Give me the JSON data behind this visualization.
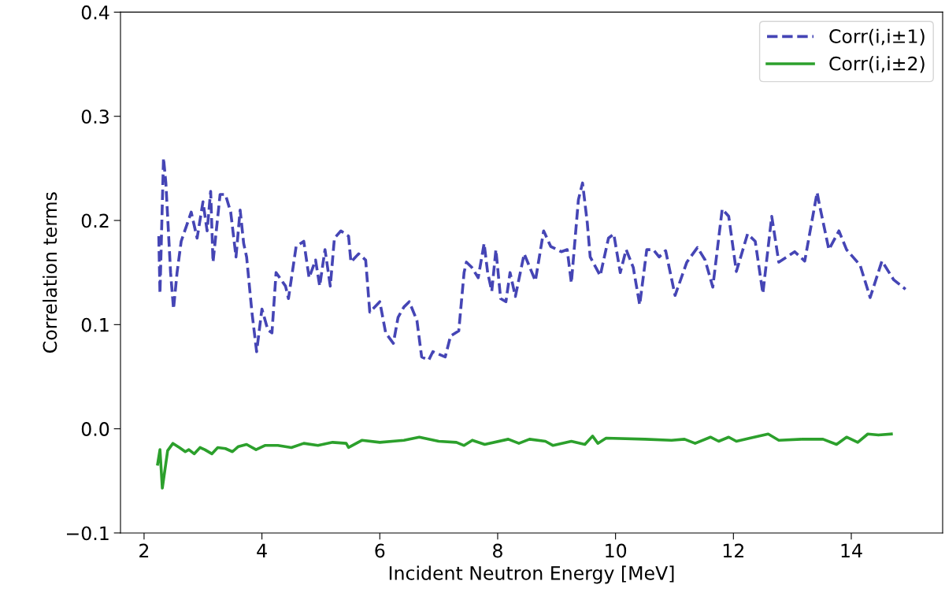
{
  "chart_data": {
    "type": "line",
    "xlabel": "Incident Neutron Energy [MeV]",
    "ylabel": "Correlation terms",
    "xlim": [
      1.6,
      15.55
    ],
    "ylim": [
      -0.1,
      0.4
    ],
    "xticks": [
      2,
      4,
      6,
      8,
      10,
      12,
      14
    ],
    "yticks": [
      {
        "value": -0.1,
        "label": "−0.1"
      },
      {
        "value": 0,
        "label": "0.0"
      },
      {
        "value": 0.1,
        "label": "0.1"
      },
      {
        "value": 0.2,
        "label": "0.2"
      },
      {
        "value": 0.3,
        "label": "0.3"
      },
      {
        "value": 0.4,
        "label": "0.4"
      }
    ],
    "grid": false,
    "legend": "top right",
    "series": [
      {
        "name": "Corr(i,i±1)",
        "color": "#4545b5",
        "line_style": "dashed",
        "x": [
          2.25,
          2.27,
          2.33,
          2.37,
          2.45,
          2.5,
          2.56,
          2.63,
          2.8,
          2.9,
          3.0,
          3.07,
          3.13,
          3.17,
          3.29,
          3.38,
          3.47,
          3.56,
          3.63,
          3.69,
          3.74,
          3.83,
          3.91,
          4.0,
          4.1,
          4.17,
          4.24,
          4.4,
          4.45,
          4.58,
          4.71,
          4.8,
          4.91,
          4.98,
          5.07,
          5.16,
          5.23,
          5.34,
          5.47,
          5.51,
          5.64,
          5.76,
          5.83,
          6.0,
          6.1,
          6.23,
          6.31,
          6.41,
          6.5,
          6.63,
          6.71,
          6.83,
          6.9,
          7.11,
          7.2,
          7.34,
          7.43,
          7.47,
          7.56,
          7.67,
          7.77,
          7.83,
          7.9,
          7.97,
          8.05,
          8.14,
          8.21,
          8.3,
          8.45,
          8.64,
          8.78,
          8.9,
          9.08,
          9.18,
          9.25,
          9.37,
          9.44,
          9.52,
          9.57,
          9.74,
          9.88,
          9.97,
          10.08,
          10.18,
          10.3,
          10.41,
          10.53,
          10.64,
          10.74,
          10.85,
          11.01,
          11.21,
          11.39,
          11.52,
          11.65,
          11.81,
          11.92,
          12.05,
          12.24,
          12.37,
          12.5,
          12.65,
          12.77,
          13.04,
          13.21,
          13.42,
          13.46,
          13.62,
          13.79,
          13.92,
          14.15,
          14.32,
          14.52,
          14.72,
          14.92
        ],
        "values": [
          0.185,
          0.13,
          0.26,
          0.236,
          0.15,
          0.115,
          0.15,
          0.18,
          0.208,
          0.183,
          0.218,
          0.19,
          0.228,
          0.16,
          0.225,
          0.225,
          0.208,
          0.165,
          0.21,
          0.178,
          0.165,
          0.112,
          0.074,
          0.115,
          0.095,
          0.092,
          0.15,
          0.137,
          0.125,
          0.175,
          0.18,
          0.145,
          0.162,
          0.137,
          0.172,
          0.137,
          0.183,
          0.19,
          0.185,
          0.16,
          0.168,
          0.162,
          0.112,
          0.122,
          0.092,
          0.082,
          0.107,
          0.117,
          0.122,
          0.104,
          0.069,
          0.066,
          0.074,
          0.069,
          0.089,
          0.094,
          0.15,
          0.16,
          0.155,
          0.145,
          0.178,
          0.15,
          0.132,
          0.172,
          0.125,
          0.122,
          0.15,
          0.127,
          0.168,
          0.142,
          0.19,
          0.175,
          0.17,
          0.172,
          0.14,
          0.22,
          0.236,
          0.198,
          0.165,
          0.147,
          0.183,
          0.187,
          0.15,
          0.172,
          0.155,
          0.119,
          0.172,
          0.172,
          0.165,
          0.171,
          0.128,
          0.16,
          0.174,
          0.162,
          0.136,
          0.211,
          0.204,
          0.151,
          0.187,
          0.18,
          0.13,
          0.204,
          0.16,
          0.17,
          0.161,
          0.227,
          0.215,
          0.172,
          0.19,
          0.172,
          0.157,
          0.126,
          0.161,
          0.143,
          0.134
        ]
      },
      {
        "name": "Corr(i,i±2)",
        "color": "#2ca02c",
        "line_style": "solid",
        "x": [
          2.23,
          2.27,
          2.31,
          2.4,
          2.49,
          2.6,
          2.7,
          2.76,
          2.85,
          2.95,
          3.03,
          3.15,
          3.25,
          3.38,
          3.5,
          3.6,
          3.74,
          3.9,
          4.05,
          4.27,
          4.5,
          4.71,
          4.95,
          5.2,
          5.43,
          5.47,
          5.7,
          6.0,
          6.41,
          6.67,
          7.0,
          7.3,
          7.43,
          7.57,
          7.78,
          8.18,
          8.36,
          8.54,
          8.81,
          8.94,
          9.25,
          9.48,
          9.61,
          9.7,
          9.84,
          10.5,
          10.95,
          11.17,
          11.35,
          11.61,
          11.75,
          11.92,
          12.05,
          12.28,
          12.59,
          12.77,
          13.17,
          13.52,
          13.75,
          13.92,
          14.11,
          14.28,
          14.46,
          14.68
        ],
        "values": [
          -0.034,
          -0.02,
          -0.057,
          -0.021,
          -0.014,
          -0.018,
          -0.022,
          -0.02,
          -0.024,
          -0.018,
          -0.02,
          -0.024,
          -0.018,
          -0.019,
          -0.022,
          -0.017,
          -0.015,
          -0.02,
          -0.016,
          -0.016,
          -0.018,
          -0.014,
          -0.016,
          -0.013,
          -0.014,
          -0.018,
          -0.011,
          -0.013,
          -0.011,
          -0.008,
          -0.012,
          -0.013,
          -0.016,
          -0.011,
          -0.015,
          -0.01,
          -0.014,
          -0.01,
          -0.012,
          -0.016,
          -0.012,
          -0.015,
          -0.007,
          -0.014,
          -0.009,
          -0.01,
          -0.011,
          -0.01,
          -0.014,
          -0.008,
          -0.012,
          -0.008,
          -0.012,
          -0.009,
          -0.005,
          -0.011,
          -0.01,
          -0.01,
          -0.015,
          -0.008,
          -0.013,
          -0.005,
          -0.006,
          -0.005
        ]
      }
    ]
  }
}
